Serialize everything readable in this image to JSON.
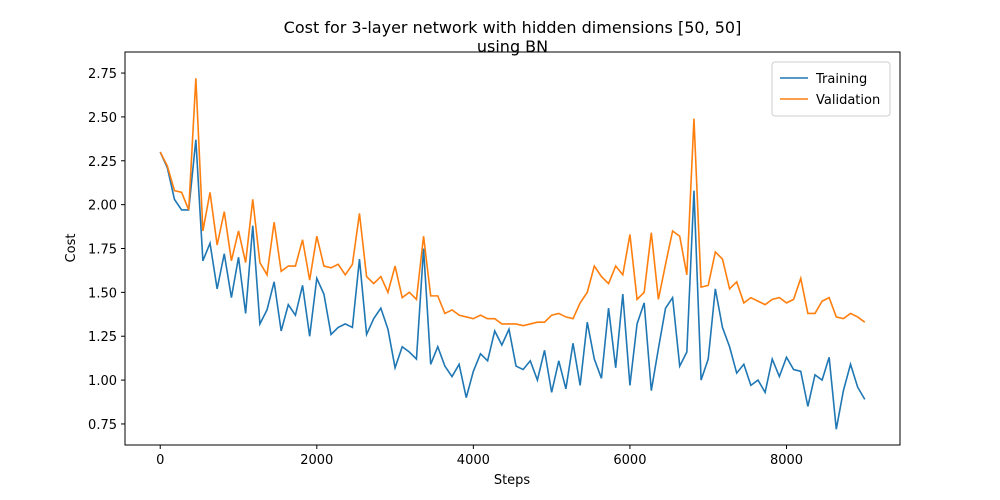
{
  "chart_data": {
    "type": "line",
    "title": "Cost for 3-layer network with hidden dimensions [50, 50]\nusing BN",
    "xlabel": "Steps",
    "ylabel": "Cost",
    "x": [
      0,
      91,
      182,
      273,
      364,
      455,
      545,
      636,
      727,
      818,
      909,
      1000,
      1091,
      1182,
      1273,
      1364,
      1455,
      1545,
      1636,
      1727,
      1818,
      1909,
      2000,
      2091,
      2182,
      2273,
      2364,
      2455,
      2545,
      2636,
      2727,
      2818,
      2909,
      3000,
      3091,
      3182,
      3273,
      3364,
      3455,
      3545,
      3636,
      3727,
      3818,
      3909,
      4000,
      4091,
      4182,
      4273,
      4364,
      4455,
      4545,
      4636,
      4727,
      4818,
      4909,
      5000,
      5091,
      5182,
      5273,
      5364,
      5455,
      5545,
      5636,
      5727,
      5818,
      5909,
      6000,
      6091,
      6182,
      6273,
      6364,
      6455,
      6545,
      6636,
      6727,
      6818,
      6909,
      7000,
      7091,
      7182,
      7273,
      7364,
      7455,
      7545,
      7636,
      7727,
      7818,
      7909,
      8000,
      8091,
      8182,
      8273,
      8364,
      8455,
      8545,
      8636,
      8727,
      8818,
      8909,
      9000
    ],
    "series": [
      {
        "name": "Training",
        "color": "#1f77b4",
        "values": [
          2.3,
          2.21,
          2.03,
          1.97,
          1.97,
          2.37,
          1.68,
          1.78,
          1.52,
          1.72,
          1.47,
          1.7,
          1.38,
          1.88,
          1.32,
          1.4,
          1.56,
          1.28,
          1.43,
          1.37,
          1.54,
          1.25,
          1.58,
          1.49,
          1.26,
          1.3,
          1.32,
          1.3,
          1.69,
          1.26,
          1.35,
          1.41,
          1.29,
          1.07,
          1.19,
          1.16,
          1.12,
          1.75,
          1.09,
          1.19,
          1.08,
          1.02,
          1.09,
          0.9,
          1.05,
          1.15,
          1.11,
          1.28,
          1.2,
          1.29,
          1.08,
          1.06,
          1.11,
          1.0,
          1.17,
          0.93,
          1.11,
          0.95,
          1.21,
          0.97,
          1.33,
          1.12,
          1.01,
          1.41,
          1.07,
          1.49,
          0.97,
          1.32,
          1.44,
          0.94,
          1.18,
          1.41,
          1.47,
          1.08,
          1.16,
          2.08,
          1.0,
          1.12,
          1.52,
          1.3,
          1.19,
          1.04,
          1.09,
          0.97,
          1.0,
          0.93,
          1.12,
          1.02,
          1.13,
          1.06,
          1.05,
          0.85,
          1.03,
          1.0,
          1.13,
          0.72,
          0.94,
          1.09,
          0.96,
          0.89
        ]
      },
      {
        "name": "Validation",
        "color": "#ff7f0e",
        "values": [
          2.3,
          2.22,
          2.08,
          2.07,
          1.97,
          2.72,
          1.85,
          2.07,
          1.77,
          1.96,
          1.68,
          1.85,
          1.67,
          2.03,
          1.67,
          1.6,
          1.9,
          1.62,
          1.65,
          1.65,
          1.8,
          1.57,
          1.82,
          1.65,
          1.64,
          1.66,
          1.6,
          1.66,
          1.95,
          1.59,
          1.55,
          1.59,
          1.5,
          1.65,
          1.47,
          1.5,
          1.46,
          1.82,
          1.48,
          1.48,
          1.38,
          1.4,
          1.37,
          1.36,
          1.35,
          1.37,
          1.35,
          1.35,
          1.32,
          1.32,
          1.32,
          1.31,
          1.32,
          1.33,
          1.33,
          1.37,
          1.38,
          1.36,
          1.35,
          1.44,
          1.5,
          1.65,
          1.59,
          1.55,
          1.65,
          1.6,
          1.83,
          1.46,
          1.5,
          1.84,
          1.46,
          1.66,
          1.85,
          1.82,
          1.6,
          2.49,
          1.53,
          1.54,
          1.73,
          1.69,
          1.52,
          1.56,
          1.44,
          1.47,
          1.45,
          1.43,
          1.46,
          1.47,
          1.44,
          1.46,
          1.58,
          1.38,
          1.38,
          1.45,
          1.47,
          1.36,
          1.35,
          1.38,
          1.36,
          1.33
        ]
      }
    ],
    "xlim": [
      -450,
      9450
    ],
    "ylim": [
      0.63,
      2.87
    ],
    "xticks": [
      0,
      2000,
      4000,
      6000,
      8000
    ],
    "yticks": [
      0.75,
      {
        "value": 1,
        "label": "1.00"
      },
      1.25,
      {
        "value": 1.5,
        "label": "1.50"
      },
      1.75,
      {
        "value": 2,
        "label": "2.00"
      },
      2.25,
      {
        "value": 2.5,
        "label": "2.50"
      },
      2.75
    ],
    "grid": false,
    "legend": "upper right"
  }
}
